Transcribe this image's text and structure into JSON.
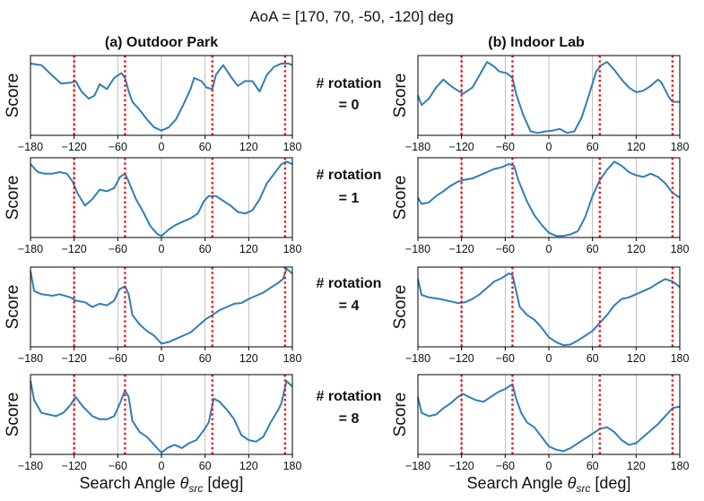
{
  "title": "AoA = [170, 70, -50, -120] deg",
  "col_titles": [
    "(a) Outdoor Park",
    "(b) Indoor Lab"
  ],
  "row_labels": [
    {
      "line1": "# rotation",
      "line2": "= 0"
    },
    {
      "line1": "# rotation",
      "line2": "= 1"
    },
    {
      "line1": "# rotation",
      "line2": "= 4"
    },
    {
      "line1": "# rotation",
      "line2": "= 8"
    }
  ],
  "xlabel_main": "Search Angle ",
  "xlabel_theta": "θ",
  "xlabel_sub": "src",
  "xlabel_unit": " [deg]",
  "ylabel": "Score",
  "colors": {
    "line": "#2f7fb5",
    "aoa_marker": "#e8141c",
    "grid": "#b0b0b0",
    "axis": "#000000"
  },
  "chart_data": {
    "type": "line",
    "xlim": [
      -180,
      180
    ],
    "ylim": [
      0,
      1
    ],
    "xticks": [
      -180,
      -120,
      -60,
      0,
      60,
      120,
      180
    ],
    "xtick_labels": [
      "−180",
      "−120",
      "−60",
      "0",
      "60",
      "120",
      "180"
    ],
    "grid": "vertical lines at x ticks",
    "aoa_lines": [
      170,
      70,
      -50,
      -120
    ],
    "panels": [
      {
        "column": "(a) Outdoor Park",
        "row": "# rotation = 0",
        "x": [
          -180,
          -165,
          -150,
          -138,
          -125,
          -118,
          -110,
          -100,
          -92,
          -85,
          -75,
          -65,
          -55,
          -50,
          -45,
          -40,
          -30,
          -20,
          -10,
          0,
          10,
          20,
          30,
          40,
          45,
          55,
          62,
          70,
          75,
          85,
          95,
          105,
          115,
          125,
          135,
          145,
          155,
          165,
          175,
          180
        ],
        "y": [
          0.9,
          0.88,
          0.75,
          0.65,
          0.66,
          0.68,
          0.55,
          0.46,
          0.5,
          0.64,
          0.58,
          0.72,
          0.78,
          0.72,
          0.55,
          0.42,
          0.32,
          0.2,
          0.1,
          0.06,
          0.1,
          0.2,
          0.38,
          0.58,
          0.72,
          0.68,
          0.6,
          0.58,
          0.76,
          0.88,
          0.74,
          0.62,
          0.68,
          0.68,
          0.55,
          0.76,
          0.86,
          0.9,
          0.9,
          0.88
        ]
      },
      {
        "column": "(b) Indoor Lab",
        "row": "# rotation = 0",
        "x": [
          -180,
          -175,
          -165,
          -155,
          -145,
          -135,
          -125,
          -118,
          -105,
          -95,
          -85,
          -75,
          -68,
          -58,
          -50,
          -45,
          -35,
          -25,
          -15,
          -5,
          5,
          15,
          25,
          35,
          45,
          55,
          65,
          72,
          80,
          90,
          100,
          110,
          120,
          130,
          140,
          150,
          155,
          165,
          170,
          180
        ],
        "y": [
          0.5,
          0.38,
          0.46,
          0.6,
          0.7,
          0.62,
          0.56,
          0.52,
          0.6,
          0.76,
          0.92,
          0.86,
          0.8,
          0.78,
          0.72,
          0.52,
          0.25,
          0.05,
          0.03,
          0.05,
          0.06,
          0.08,
          0.03,
          0.05,
          0.22,
          0.5,
          0.8,
          0.88,
          0.92,
          0.82,
          0.7,
          0.6,
          0.54,
          0.56,
          0.62,
          0.7,
          0.66,
          0.48,
          0.42,
          0.42
        ]
      },
      {
        "column": "(a) Outdoor Park",
        "row": "# rotation = 1",
        "x": [
          -180,
          -170,
          -160,
          -150,
          -140,
          -130,
          -122,
          -115,
          -105,
          -95,
          -85,
          -75,
          -65,
          -57,
          -50,
          -45,
          -35,
          -25,
          -15,
          -5,
          0,
          10,
          20,
          30,
          40,
          50,
          58,
          65,
          75,
          85,
          95,
          105,
          115,
          125,
          135,
          145,
          155,
          165,
          172,
          180
        ],
        "y": [
          0.92,
          0.82,
          0.8,
          0.8,
          0.82,
          0.8,
          0.7,
          0.55,
          0.4,
          0.48,
          0.6,
          0.58,
          0.62,
          0.76,
          0.8,
          0.7,
          0.48,
          0.32,
          0.14,
          0.04,
          0.02,
          0.1,
          0.16,
          0.2,
          0.24,
          0.3,
          0.45,
          0.52,
          0.52,
          0.46,
          0.4,
          0.32,
          0.3,
          0.34,
          0.48,
          0.68,
          0.8,
          0.92,
          0.95,
          0.92
        ]
      },
      {
        "column": "(b) Indoor Lab",
        "row": "# rotation = 1",
        "x": [
          -180,
          -175,
          -165,
          -155,
          -145,
          -135,
          -125,
          -118,
          -105,
          -95,
          -85,
          -75,
          -65,
          -55,
          -48,
          -42,
          -30,
          -20,
          -10,
          0,
          10,
          20,
          30,
          40,
          50,
          60,
          70,
          80,
          90,
          100,
          110,
          120,
          130,
          140,
          150,
          160,
          170,
          180
        ],
        "y": [
          0.5,
          0.42,
          0.44,
          0.52,
          0.58,
          0.65,
          0.7,
          0.72,
          0.74,
          0.78,
          0.82,
          0.86,
          0.88,
          0.92,
          0.9,
          0.72,
          0.45,
          0.28,
          0.16,
          0.06,
          0.02,
          0.02,
          0.04,
          0.08,
          0.26,
          0.52,
          0.72,
          0.85,
          0.95,
          0.9,
          0.82,
          0.78,
          0.76,
          0.8,
          0.76,
          0.68,
          0.56,
          0.5
        ]
      },
      {
        "column": "(a) Outdoor Park",
        "row": "# rotation = 4",
        "x": [
          -180,
          -175,
          -165,
          -150,
          -140,
          -125,
          -118,
          -105,
          -95,
          -85,
          -75,
          -65,
          -58,
          -50,
          -45,
          -40,
          -30,
          -20,
          -10,
          0,
          10,
          20,
          30,
          40,
          50,
          60,
          70,
          80,
          90,
          100,
          110,
          120,
          130,
          140,
          150,
          160,
          167,
          172,
          180
        ],
        "y": [
          0.95,
          0.7,
          0.66,
          0.64,
          0.66,
          0.62,
          0.58,
          0.56,
          0.5,
          0.54,
          0.52,
          0.58,
          0.72,
          0.76,
          0.66,
          0.4,
          0.28,
          0.2,
          0.14,
          0.04,
          0.06,
          0.1,
          0.14,
          0.18,
          0.26,
          0.34,
          0.4,
          0.46,
          0.5,
          0.54,
          0.55,
          0.6,
          0.64,
          0.68,
          0.74,
          0.8,
          0.85,
          0.98,
          0.92
        ]
      },
      {
        "column": "(b) Indoor Lab",
        "row": "# rotation = 4",
        "x": [
          -180,
          -175,
          -165,
          -150,
          -140,
          -125,
          -115,
          -105,
          -95,
          -85,
          -75,
          -65,
          -55,
          -50,
          -45,
          -40,
          -30,
          -20,
          -10,
          0,
          10,
          20,
          30,
          40,
          50,
          60,
          70,
          80,
          90,
          100,
          110,
          120,
          130,
          140,
          150,
          160,
          170,
          180
        ],
        "y": [
          0.85,
          0.65,
          0.62,
          0.6,
          0.58,
          0.55,
          0.56,
          0.6,
          0.66,
          0.74,
          0.82,
          0.86,
          0.92,
          0.9,
          0.7,
          0.5,
          0.4,
          0.34,
          0.24,
          0.12,
          0.06,
          0.02,
          0.03,
          0.08,
          0.14,
          0.2,
          0.3,
          0.4,
          0.52,
          0.6,
          0.62,
          0.66,
          0.7,
          0.74,
          0.8,
          0.85,
          0.82,
          0.75
        ]
      },
      {
        "column": "(a) Outdoor Park",
        "row": "# rotation = 8",
        "x": [
          -180,
          -175,
          -165,
          -155,
          -145,
          -135,
          -125,
          -118,
          -108,
          -95,
          -85,
          -75,
          -65,
          -58,
          -50,
          -45,
          -40,
          -30,
          -20,
          -10,
          0,
          8,
          18,
          28,
          38,
          48,
          58,
          65,
          72,
          80,
          90,
          100,
          110,
          120,
          130,
          140,
          150,
          160,
          165,
          172,
          180
        ],
        "y": [
          0.92,
          0.68,
          0.52,
          0.5,
          0.48,
          0.52,
          0.62,
          0.72,
          0.6,
          0.48,
          0.44,
          0.44,
          0.48,
          0.62,
          0.8,
          0.72,
          0.42,
          0.28,
          0.22,
          0.12,
          0.02,
          0.08,
          0.12,
          0.08,
          0.14,
          0.18,
          0.3,
          0.4,
          0.7,
          0.66,
          0.56,
          0.44,
          0.24,
          0.18,
          0.16,
          0.22,
          0.4,
          0.55,
          0.64,
          0.92,
          0.85
        ]
      },
      {
        "column": "(b) Indoor Lab",
        "row": "# rotation = 8",
        "x": [
          -180,
          -175,
          -165,
          -155,
          -145,
          -135,
          -125,
          -118,
          -110,
          -100,
          -90,
          -80,
          -70,
          -60,
          -50,
          -45,
          -38,
          -30,
          -20,
          -10,
          0,
          10,
          20,
          30,
          40,
          50,
          60,
          70,
          80,
          90,
          100,
          110,
          120,
          130,
          140,
          150,
          160,
          170,
          180
        ],
        "y": [
          0.72,
          0.52,
          0.48,
          0.5,
          0.58,
          0.64,
          0.72,
          0.76,
          0.72,
          0.68,
          0.66,
          0.72,
          0.78,
          0.82,
          0.88,
          0.7,
          0.52,
          0.4,
          0.34,
          0.22,
          0.1,
          0.06,
          0.04,
          0.08,
          0.14,
          0.2,
          0.26,
          0.32,
          0.34,
          0.28,
          0.18,
          0.12,
          0.14,
          0.22,
          0.3,
          0.38,
          0.48,
          0.58,
          0.6
        ]
      }
    ]
  }
}
